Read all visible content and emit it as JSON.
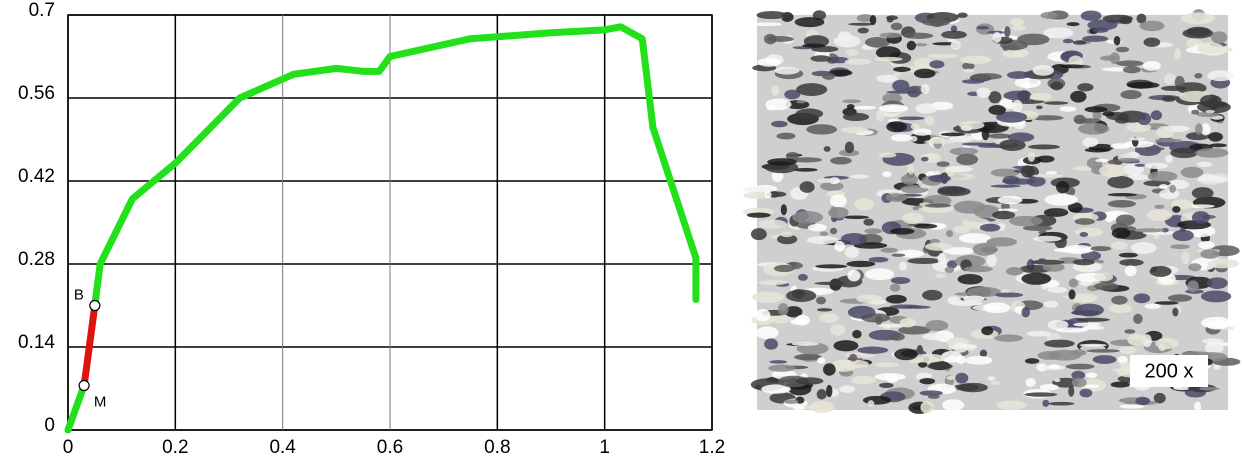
{
  "chart_data": {
    "type": "line",
    "xlim": [
      0,
      1.2
    ],
    "xticks": [
      0,
      0.2,
      0.4,
      0.6,
      0.8,
      1,
      1.2
    ],
    "ylim": [
      0,
      0.7
    ],
    "yticks": [
      0,
      0.14,
      0.28,
      0.42,
      0.56,
      0.7
    ],
    "grid": true,
    "series": [
      {
        "color": "#22e01a",
        "x": [
          0,
          0.03
        ],
        "values": [
          0,
          0.075
        ]
      },
      {
        "color": "#e0140f",
        "x": [
          0.03,
          0.05
        ],
        "values": [
          0.075,
          0.21
        ]
      },
      {
        "color": "#22e01a",
        "x": [
          0.05,
          0.06,
          0.12,
          0.2,
          0.32,
          0.42,
          0.5,
          0.55,
          0.58,
          0.6,
          0.75,
          0.9,
          1.0,
          1.03,
          1.07,
          1.09,
          1.17,
          1.17
        ],
        "values": [
          0.21,
          0.28,
          0.39,
          0.45,
          0.56,
          0.6,
          0.61,
          0.605,
          0.605,
          0.63,
          0.66,
          0.67,
          0.675,
          0.68,
          0.66,
          0.51,
          0.29,
          0.22
        ]
      }
    ],
    "annotations": [
      {
        "label": "B",
        "x": 0.05,
        "y": 0.21
      },
      {
        "label": "M",
        "x": 0.03,
        "y": 0.075
      }
    ],
    "image_label": "200 x"
  }
}
